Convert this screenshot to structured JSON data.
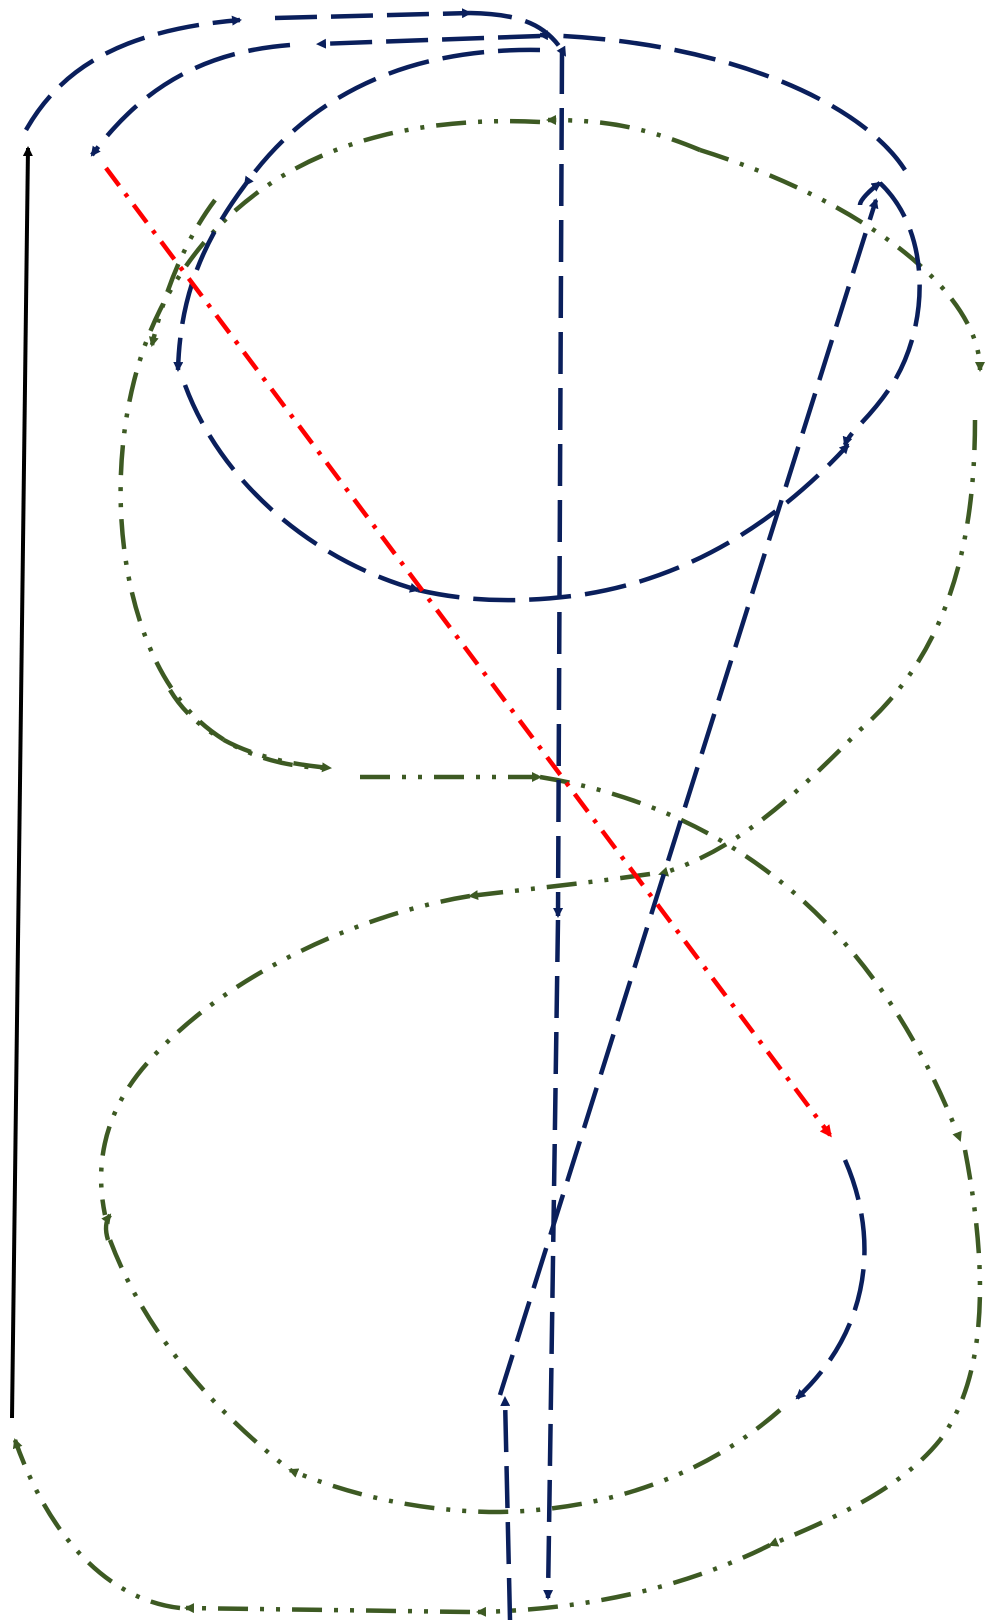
{
  "colors": {
    "navy": "#0a1f5c",
    "olive": "#3d5a23",
    "red": "#ff0000",
    "black": "#000000",
    "background": "#ffffff"
  },
  "diagram": {
    "type": "figure-eight loop with directed flow arrows",
    "paths": [
      {
        "id": "black-vertical-arrow",
        "color": "black",
        "style": "solid"
      },
      {
        "id": "navy-top-outer-loop",
        "color": "navy",
        "style": "dashed"
      },
      {
        "id": "navy-top-inner-loop",
        "color": "navy",
        "style": "dashed"
      },
      {
        "id": "navy-upper-bowl",
        "color": "navy",
        "style": "dashed"
      },
      {
        "id": "navy-vertical-axis",
        "color": "navy",
        "style": "dashed"
      },
      {
        "id": "navy-diagonal",
        "color": "navy",
        "style": "dashed"
      },
      {
        "id": "navy-lower-hook",
        "color": "navy",
        "style": "dashed"
      },
      {
        "id": "navy-bottom-up",
        "color": "navy",
        "style": "dashed"
      },
      {
        "id": "olive-upper-ellipse",
        "color": "olive",
        "style": "dash-dot-dot"
      },
      {
        "id": "olive-lower-ellipse",
        "color": "olive",
        "style": "dash-dot-dot"
      },
      {
        "id": "olive-right-outer-arc",
        "color": "olive",
        "style": "dash-dot-dot"
      },
      {
        "id": "olive-bottom-left-arc",
        "color": "olive",
        "style": "dash-dot-dot"
      },
      {
        "id": "red-diagonal",
        "color": "red",
        "style": "dash-dot"
      }
    ]
  }
}
